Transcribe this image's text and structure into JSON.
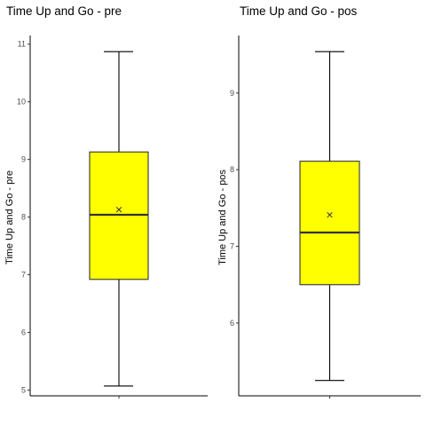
{
  "chart_data": [
    {
      "type": "box",
      "title": "Time Up and Go - pre",
      "xlabel": "",
      "ylabel": "Time Up and Go - pre",
      "ylim": [
        4.9,
        11.15
      ],
      "yticks": [
        5,
        6,
        7,
        8,
        9,
        10,
        11
      ],
      "grid": false,
      "fill_color": "#FFFF00",
      "stats": {
        "min": 5.07,
        "q1": 6.92,
        "median": 8.04,
        "q3": 9.13,
        "max": 10.87,
        "mean": 8.13
      }
    },
    {
      "type": "box",
      "title": "Time Up and Go - pos",
      "xlabel": "",
      "ylabel": "Time Up and Go - pos",
      "ylim": [
        5.05,
        9.75
      ],
      "yticks": [
        6,
        7,
        8,
        9
      ],
      "grid": false,
      "fill_color": "#FFFF00",
      "stats": {
        "min": 5.25,
        "q1": 6.5,
        "median": 7.18,
        "q3": 8.11,
        "max": 9.54,
        "mean": 7.41
      }
    }
  ]
}
